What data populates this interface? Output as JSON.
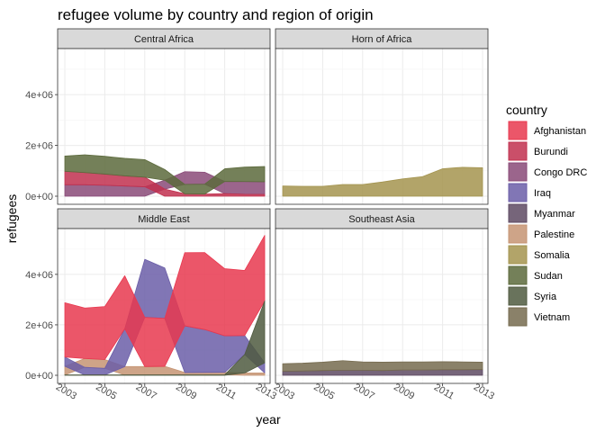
{
  "chart_data": {
    "type": "area",
    "subtype": "streamgraph-facets",
    "title": "refugee volume by country and region of origin",
    "xlabel": "year",
    "ylabel": "refugees",
    "xlim": [
      2003,
      2013
    ],
    "ylim": [
      0,
      5600000
    ],
    "x_ticks": [
      2003,
      2005,
      2007,
      2009,
      2011,
      2013
    ],
    "y_ticks": [
      0,
      2000000,
      4000000
    ],
    "y_tick_labels": [
      "0e+00",
      "2e+06",
      "4e+06"
    ],
    "x": [
      2003,
      2004,
      2005,
      2006,
      2007,
      2008,
      2009,
      2010,
      2011,
      2012,
      2013
    ],
    "grid": true,
    "legend_position": "right",
    "legend_title": "country",
    "series_names": [
      "Afghanistan",
      "Burundi",
      "Congo DRC",
      "Iraq",
      "Myanmar",
      "Palestine",
      "Somalia",
      "Sudan",
      "Syria",
      "Vietnam"
    ],
    "colors": {
      "Afghanistan": "#e8384f",
      "Burundi": "#c1304f",
      "Congo DRC": "#8a4a78",
      "Iraq": "#6b5ea8",
      "Myanmar": "#5e4a63",
      "Palestine": "#c59473",
      "Somalia": "#a4944f",
      "Sudan": "#5c6a3c",
      "Syria": "#4f5a40",
      "Vietnam": "#766b4f"
    },
    "panels": [
      {
        "region": "Central Africa",
        "series": [
          {
            "name": "Congo DRC",
            "values": [
              450000,
              450000,
              430000,
              400000,
              370000,
              350000,
              500000,
              470000,
              480000,
              500000,
              500000
            ]
          },
          {
            "name": "Burundi",
            "values": [
              530000,
              480000,
              440000,
              400000,
              380000,
              280000,
              95000,
              85000,
              100000,
              75000,
              70000
            ]
          },
          {
            "name": "Sudan",
            "values": [
              600000,
              700000,
              700000,
              690000,
              690000,
              420000,
              370000,
              390000,
              500000,
              570000,
              600000
            ]
          }
        ]
      },
      {
        "region": "Horn of Africa",
        "series": [
          {
            "name": "Somalia",
            "values": [
              400000,
              390000,
              390000,
              460000,
              460000,
              560000,
              680000,
              770000,
              1080000,
              1140000,
              1120000
            ]
          }
        ]
      },
      {
        "region": "Middle East",
        "series": [
          {
            "name": "Palestine",
            "values": [
              340000,
              350000,
              350000,
              330000,
              330000,
              340000,
              95000,
              95000,
              95000,
              95000,
              95000
            ]
          },
          {
            "name": "Iraq",
            "values": [
              370000,
              300000,
              260000,
              1500000,
              2300000,
              2000000,
              1850000,
              1700000,
              1450000,
              750000,
              400000
            ]
          },
          {
            "name": "Afghanistan",
            "values": [
              2150000,
              2000000,
              2100000,
              2100000,
              1950000,
              1900000,
              2900000,
              3050000,
              2660000,
              2580000,
              2600000
            ]
          },
          {
            "name": "Syria",
            "values": [
              15000,
              15000,
              15000,
              15000,
              15000,
              15000,
              15000,
              18000,
              20000,
              730000,
              2450000
            ]
          }
        ]
      },
      {
        "region": "Southeast Asia",
        "series": [
          {
            "name": "Myanmar",
            "values": [
              160000,
              170000,
              190000,
              200000,
              200000,
              190000,
              210000,
              210000,
              220000,
              220000,
              230000
            ]
          },
          {
            "name": "Vietnam",
            "values": [
              300000,
              310000,
              330000,
              380000,
              330000,
              330000,
              320000,
              320000,
              320000,
              310000,
              290000
            ]
          }
        ]
      }
    ]
  }
}
